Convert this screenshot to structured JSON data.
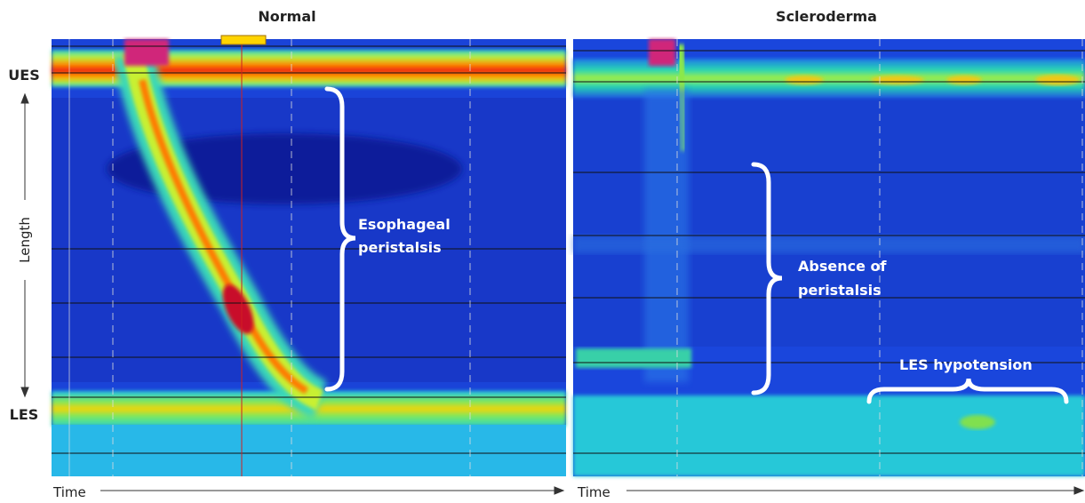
{
  "y_axis": {
    "top_label": "UES",
    "bottom_label": "LES",
    "label": "Length"
  },
  "panels": [
    {
      "title": "Normal",
      "x_axis_label": "Time",
      "annotation": [
        "Esophageal",
        "peristalsis"
      ]
    },
    {
      "title": "Scleroderma",
      "x_axis_label": "Time",
      "annotation": [
        "Absence of",
        "peristalsis"
      ],
      "annotation_2": "LES hypotension"
    }
  ]
}
